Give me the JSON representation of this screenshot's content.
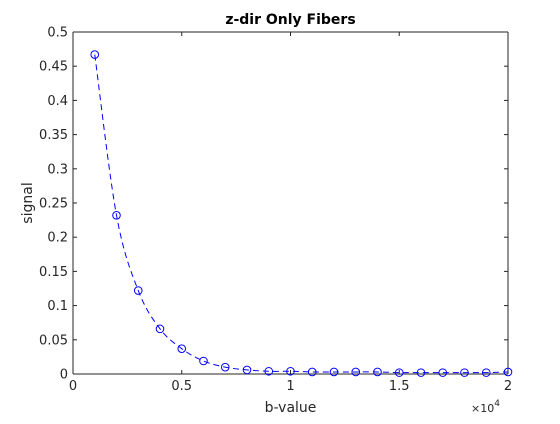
{
  "chart_data": {
    "type": "line",
    "title": "z-dir Only Fibers",
    "xlabel": "b-value",
    "ylabel": "signal",
    "xlim": [
      0,
      20000
    ],
    "ylim": [
      0,
      0.5
    ],
    "x_ticks": [
      0,
      5000,
      10000,
      15000,
      20000
    ],
    "x_tick_labels": [
      "0",
      "0.5",
      "1",
      "1.5",
      "2"
    ],
    "x_exponent_base": "×10",
    "x_exponent_power": "4",
    "y_ticks": [
      0,
      0.05,
      0.1,
      0.15,
      0.2,
      0.25,
      0.3,
      0.35,
      0.4,
      0.45,
      0.5
    ],
    "y_tick_labels": [
      "0",
      "0.05",
      "0.1",
      "0.15",
      "0.2",
      "0.25",
      "0.3",
      "0.35",
      "0.4",
      "0.45",
      "0.5"
    ],
    "grid": false,
    "series": [
      {
        "marker": "circle",
        "line_style": "dashed",
        "color": "#0000ff",
        "x": [
          1000,
          2000,
          3000,
          4000,
          5000,
          6000,
          7000,
          8000,
          9000,
          10000,
          11000,
          12000,
          13000,
          14000,
          15000,
          16000,
          17000,
          18000,
          19000,
          20000
        ],
        "y": [
          0.467,
          0.232,
          0.122,
          0.066,
          0.037,
          0.019,
          0.01,
          0.006,
          0.004,
          0.004,
          0.003,
          0.003,
          0.003,
          0.003,
          0.002,
          0.002,
          0.002,
          0.002,
          0.002,
          0.003
        ]
      }
    ]
  }
}
